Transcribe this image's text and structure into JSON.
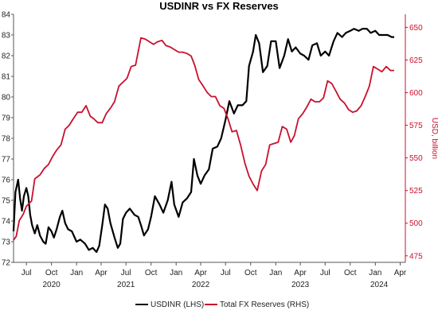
{
  "chart_data": {
    "type": "line",
    "title": "USDINR vs FX Reserves",
    "colors": {
      "usdinr": "#000000",
      "reserves": "#c8102e",
      "ylabel_right": "#c8102e",
      "axis": "#555555"
    },
    "x_range": [
      "2020-05-15",
      "2024-04-20"
    ],
    "left_axis": {
      "ylim": [
        72,
        84
      ],
      "ticks": [
        "72",
        "73",
        "74",
        "75",
        "76",
        "77",
        "78",
        "79",
        "80",
        "81",
        "82",
        "83",
        "84"
      ]
    },
    "right_axis": {
      "ylabel": "USD, billion",
      "ylim": [
        470,
        660
      ],
      "ticks": [
        "475",
        "500",
        "525",
        "550",
        "575",
        "600",
        "625",
        "650"
      ]
    },
    "x_ticks": [
      {
        "date": "2020-07-01",
        "label": "Jul"
      },
      {
        "date": "2020-10-01",
        "label": "Oct"
      },
      {
        "date": "2021-01-01",
        "label": "Jan"
      },
      {
        "date": "2021-04-01",
        "label": "Apr"
      },
      {
        "date": "2021-07-01",
        "label": "Jul"
      },
      {
        "date": "2021-10-01",
        "label": "Oct"
      },
      {
        "date": "2022-01-01",
        "label": "Jan"
      },
      {
        "date": "2022-04-01",
        "label": "Apr"
      },
      {
        "date": "2022-07-01",
        "label": "Jul"
      },
      {
        "date": "2022-10-01",
        "label": "Oct"
      },
      {
        "date": "2023-01-01",
        "label": "Jan"
      },
      {
        "date": "2023-04-01",
        "label": "Apr"
      },
      {
        "date": "2023-07-01",
        "label": "Jul"
      },
      {
        "date": "2023-10-01",
        "label": "Oct"
      },
      {
        "date": "2024-01-01",
        "label": "Jan"
      },
      {
        "date": "2024-04-01",
        "label": "Apr"
      }
    ],
    "year_labels": [
      {
        "date": "2020-10-01",
        "label": "2020"
      },
      {
        "date": "2021-07-01",
        "label": "2021"
      },
      {
        "date": "2022-04-01",
        "label": "2022"
      },
      {
        "date": "2023-04-01",
        "label": "2023"
      },
      {
        "date": "2024-01-15",
        "label": "2024"
      }
    ],
    "legend_position": "bottom-center",
    "series": [
      {
        "name": "USDINR (LHS)",
        "axis": "left",
        "points": [
          [
            "2020-05-15",
            73.5
          ],
          [
            "2020-05-22",
            75.4
          ],
          [
            "2020-06-01",
            76.0
          ],
          [
            "2020-06-08",
            75.1
          ],
          [
            "2020-06-15",
            74.5
          ],
          [
            "2020-06-22",
            75.2
          ],
          [
            "2020-07-01",
            75.6
          ],
          [
            "2020-07-08",
            75.2
          ],
          [
            "2020-07-15",
            74.3
          ],
          [
            "2020-07-22",
            73.8
          ],
          [
            "2020-08-01",
            73.4
          ],
          [
            "2020-08-10",
            73.8
          ],
          [
            "2020-08-20",
            73.3
          ],
          [
            "2020-09-01",
            73.0
          ],
          [
            "2020-09-10",
            72.9
          ],
          [
            "2020-09-20",
            73.7
          ],
          [
            "2020-10-01",
            73.5
          ],
          [
            "2020-10-10",
            73.2
          ],
          [
            "2020-10-20",
            73.6
          ],
          [
            "2020-11-01",
            74.2
          ],
          [
            "2020-11-10",
            74.5
          ],
          [
            "2020-11-20",
            73.9
          ],
          [
            "2020-12-01",
            73.6
          ],
          [
            "2020-12-15",
            73.5
          ],
          [
            "2021-01-01",
            73.0
          ],
          [
            "2021-01-15",
            73.1
          ],
          [
            "2021-02-01",
            72.9
          ],
          [
            "2021-02-15",
            72.6
          ],
          [
            "2021-03-01",
            72.7
          ],
          [
            "2021-03-15",
            72.5
          ],
          [
            "2021-03-25",
            72.8
          ],
          [
            "2021-04-05",
            73.8
          ],
          [
            "2021-04-15",
            74.8
          ],
          [
            "2021-04-25",
            74.6
          ],
          [
            "2021-05-05",
            73.9
          ],
          [
            "2021-05-20",
            73.2
          ],
          [
            "2021-06-01",
            72.7
          ],
          [
            "2021-06-10",
            72.9
          ],
          [
            "2021-06-20",
            74.1
          ],
          [
            "2021-07-01",
            74.4
          ],
          [
            "2021-07-15",
            74.6
          ],
          [
            "2021-08-01",
            74.3
          ],
          [
            "2021-08-15",
            74.2
          ],
          [
            "2021-08-25",
            73.8
          ],
          [
            "2021-09-05",
            73.3
          ],
          [
            "2021-09-20",
            73.6
          ],
          [
            "2021-10-01",
            74.2
          ],
          [
            "2021-10-15",
            75.2
          ],
          [
            "2021-11-01",
            74.8
          ],
          [
            "2021-11-15",
            74.4
          ],
          [
            "2021-12-01",
            75.0
          ],
          [
            "2021-12-15",
            75.9
          ],
          [
            "2021-12-25",
            74.8
          ],
          [
            "2022-01-10",
            74.2
          ],
          [
            "2022-01-25",
            74.9
          ],
          [
            "2022-02-10",
            75.1
          ],
          [
            "2022-02-25",
            75.4
          ],
          [
            "2022-03-07",
            77.0
          ],
          [
            "2022-03-20",
            76.2
          ],
          [
            "2022-04-01",
            75.8
          ],
          [
            "2022-04-15",
            76.2
          ],
          [
            "2022-05-01",
            76.5
          ],
          [
            "2022-05-15",
            77.5
          ],
          [
            "2022-06-01",
            77.6
          ],
          [
            "2022-06-15",
            78.0
          ],
          [
            "2022-07-01",
            78.9
          ],
          [
            "2022-07-15",
            79.8
          ],
          [
            "2022-08-01",
            79.2
          ],
          [
            "2022-08-15",
            79.6
          ],
          [
            "2022-09-01",
            79.6
          ],
          [
            "2022-09-15",
            79.8
          ],
          [
            "2022-09-25",
            81.5
          ],
          [
            "2022-10-10",
            82.2
          ],
          [
            "2022-10-20",
            83.0
          ],
          [
            "2022-11-01",
            82.6
          ],
          [
            "2022-11-15",
            81.2
          ],
          [
            "2022-12-01",
            81.5
          ],
          [
            "2022-12-15",
            82.7
          ],
          [
            "2023-01-01",
            82.7
          ],
          [
            "2023-01-15",
            81.4
          ],
          [
            "2023-02-01",
            82.0
          ],
          [
            "2023-02-15",
            82.8
          ],
          [
            "2023-03-01",
            82.2
          ],
          [
            "2023-03-15",
            82.4
          ],
          [
            "2023-04-01",
            82.1
          ],
          [
            "2023-04-15",
            82.0
          ],
          [
            "2023-05-01",
            81.8
          ],
          [
            "2023-05-15",
            82.5
          ],
          [
            "2023-06-01",
            82.6
          ],
          [
            "2023-06-15",
            82.0
          ],
          [
            "2023-07-01",
            82.2
          ],
          [
            "2023-07-15",
            82.0
          ],
          [
            "2023-08-01",
            82.7
          ],
          [
            "2023-08-15",
            83.1
          ],
          [
            "2023-09-01",
            82.9
          ],
          [
            "2023-09-15",
            83.1
          ],
          [
            "2023-10-01",
            83.2
          ],
          [
            "2023-10-15",
            83.3
          ],
          [
            "2023-11-01",
            83.2
          ],
          [
            "2023-11-15",
            83.3
          ],
          [
            "2023-12-01",
            83.3
          ],
          [
            "2023-12-15",
            83.1
          ],
          [
            "2024-01-01",
            83.2
          ],
          [
            "2024-01-15",
            83.0
          ],
          [
            "2024-02-01",
            83.0
          ],
          [
            "2024-02-15",
            83.0
          ],
          [
            "2024-03-01",
            82.9
          ],
          [
            "2024-03-10",
            82.9
          ]
        ]
      },
      {
        "name": "Total FX Reserves (RHS)",
        "axis": "right",
        "points": [
          [
            "2020-05-15",
            487
          ],
          [
            "2020-05-25",
            490
          ],
          [
            "2020-06-05",
            502
          ],
          [
            "2020-06-20",
            507
          ],
          [
            "2020-07-01",
            513
          ],
          [
            "2020-07-20",
            517
          ],
          [
            "2020-08-01",
            534
          ],
          [
            "2020-08-20",
            537
          ],
          [
            "2020-09-05",
            542
          ],
          [
            "2020-09-20",
            545
          ],
          [
            "2020-10-05",
            551
          ],
          [
            "2020-10-20",
            556
          ],
          [
            "2020-11-05",
            560
          ],
          [
            "2020-11-20",
            572
          ],
          [
            "2020-12-05",
            575
          ],
          [
            "2020-12-20",
            580
          ],
          [
            "2021-01-05",
            585
          ],
          [
            "2021-01-20",
            585
          ],
          [
            "2021-02-05",
            590
          ],
          [
            "2021-02-20",
            582
          ],
          [
            "2021-03-05",
            580
          ],
          [
            "2021-03-20",
            577
          ],
          [
            "2021-04-05",
            577
          ],
          [
            "2021-04-20",
            584
          ],
          [
            "2021-05-05",
            588
          ],
          [
            "2021-05-20",
            593
          ],
          [
            "2021-06-05",
            605
          ],
          [
            "2021-06-20",
            608
          ],
          [
            "2021-07-05",
            611
          ],
          [
            "2021-07-20",
            620
          ],
          [
            "2021-08-05",
            621
          ],
          [
            "2021-08-25",
            642
          ],
          [
            "2021-09-10",
            641
          ],
          [
            "2021-09-25",
            639
          ],
          [
            "2021-10-10",
            637
          ],
          [
            "2021-10-25",
            639
          ],
          [
            "2021-11-10",
            640
          ],
          [
            "2021-11-25",
            636
          ],
          [
            "2021-12-10",
            635
          ],
          [
            "2021-12-25",
            633
          ],
          [
            "2022-01-10",
            631
          ],
          [
            "2022-01-25",
            631
          ],
          [
            "2022-02-10",
            630
          ],
          [
            "2022-02-25",
            628
          ],
          [
            "2022-03-10",
            621
          ],
          [
            "2022-03-25",
            610
          ],
          [
            "2022-04-10",
            605
          ],
          [
            "2022-04-25",
            600
          ],
          [
            "2022-05-10",
            597
          ],
          [
            "2022-05-25",
            597
          ],
          [
            "2022-06-10",
            590
          ],
          [
            "2022-06-25",
            588
          ],
          [
            "2022-07-10",
            580
          ],
          [
            "2022-07-25",
            570
          ],
          [
            "2022-08-10",
            571
          ],
          [
            "2022-08-25",
            560
          ],
          [
            "2022-09-10",
            546
          ],
          [
            "2022-09-25",
            536
          ],
          [
            "2022-10-10",
            530
          ],
          [
            "2022-10-25",
            525
          ],
          [
            "2022-11-10",
            540
          ],
          [
            "2022-11-25",
            545
          ],
          [
            "2022-12-10",
            560
          ],
          [
            "2022-12-25",
            561
          ],
          [
            "2023-01-10",
            562
          ],
          [
            "2023-01-25",
            574
          ],
          [
            "2023-02-10",
            572
          ],
          [
            "2023-02-25",
            562
          ],
          [
            "2023-03-10",
            567
          ],
          [
            "2023-03-25",
            580
          ],
          [
            "2023-04-10",
            584
          ],
          [
            "2023-04-25",
            589
          ],
          [
            "2023-05-10",
            595
          ],
          [
            "2023-05-25",
            593
          ],
          [
            "2023-06-10",
            593
          ],
          [
            "2023-06-25",
            596
          ],
          [
            "2023-07-10",
            609
          ],
          [
            "2023-07-25",
            607
          ],
          [
            "2023-08-10",
            601
          ],
          [
            "2023-08-25",
            595
          ],
          [
            "2023-09-10",
            592
          ],
          [
            "2023-09-25",
            587
          ],
          [
            "2023-10-10",
            585
          ],
          [
            "2023-10-25",
            586
          ],
          [
            "2023-11-10",
            590
          ],
          [
            "2023-11-25",
            597
          ],
          [
            "2023-12-10",
            605
          ],
          [
            "2023-12-25",
            620
          ],
          [
            "2024-01-10",
            618
          ],
          [
            "2024-01-25",
            616
          ],
          [
            "2024-02-10",
            620
          ],
          [
            "2024-02-25",
            617
          ],
          [
            "2024-03-10",
            617
          ]
        ]
      }
    ]
  }
}
